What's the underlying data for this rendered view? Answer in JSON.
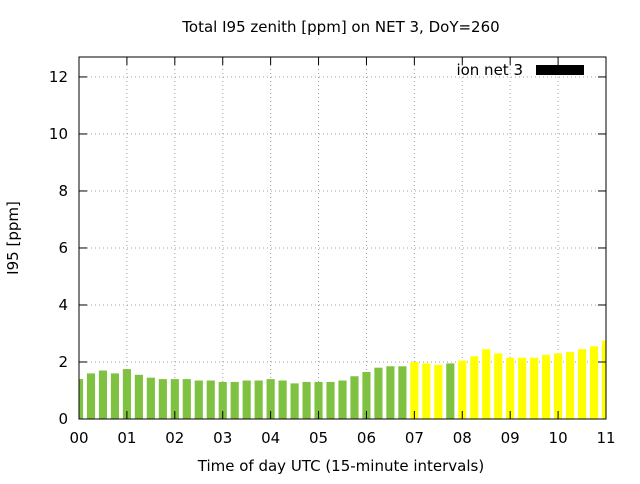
{
  "chart_data": {
    "type": "bar",
    "title": "Total I95 zenith [ppm] on NET 3, DoY=260",
    "xlabel": "Time of day UTC (15-minute intervals)",
    "ylabel": "I95 [ppm]",
    "xlim": [
      0,
      11
    ],
    "ylim": [
      0,
      12.7
    ],
    "xticks": [
      "00",
      "01",
      "02",
      "03",
      "04",
      "05",
      "06",
      "07",
      "08",
      "09",
      "10",
      "11"
    ],
    "yticks": [
      "0",
      "2",
      "4",
      "6",
      "8",
      "10",
      "12"
    ],
    "grid": true,
    "legend": {
      "position": "top-right",
      "label": "ion net 3",
      "color": "#000000"
    },
    "colors": {
      "green": "#7fc241",
      "yellow": "#ffff00"
    },
    "bar_width_hours": 0.17,
    "series": [
      {
        "x": [
          0.0,
          0.25,
          0.5,
          0.75,
          1.0,
          1.25,
          1.5,
          1.75,
          2.0,
          2.25,
          2.5,
          2.75,
          3.0,
          3.25,
          3.5,
          3.75,
          4.0,
          4.25,
          4.5,
          4.75,
          5.0,
          5.25,
          5.5,
          5.75,
          6.0,
          6.25,
          6.5,
          6.75,
          7.0,
          7.25,
          7.5,
          7.75,
          8.0,
          8.25,
          8.5,
          8.75,
          9.0,
          9.25,
          9.5,
          9.75,
          10.0,
          10.25,
          10.5,
          10.75,
          11.0
        ],
        "values": [
          1.4,
          1.6,
          1.7,
          1.6,
          1.75,
          1.55,
          1.45,
          1.4,
          1.4,
          1.4,
          1.35,
          1.35,
          1.3,
          1.3,
          1.35,
          1.35,
          1.4,
          1.35,
          1.25,
          1.3,
          1.3,
          1.3,
          1.35,
          1.5,
          1.65,
          1.8,
          1.85,
          1.85,
          2.0,
          1.95,
          1.9,
          1.95,
          2.05,
          2.2,
          2.45,
          2.3,
          2.15,
          2.15,
          2.15,
          2.25,
          2.3,
          2.35,
          2.45,
          2.55,
          2.75
        ],
        "colors": [
          "green",
          "green",
          "green",
          "green",
          "green",
          "green",
          "green",
          "green",
          "green",
          "green",
          "green",
          "green",
          "green",
          "green",
          "green",
          "green",
          "green",
          "green",
          "green",
          "green",
          "green",
          "green",
          "green",
          "green",
          "green",
          "green",
          "green",
          "green",
          "yellow",
          "yellow",
          "yellow",
          "green",
          "yellow",
          "yellow",
          "yellow",
          "yellow",
          "yellow",
          "yellow",
          "yellow",
          "yellow",
          "yellow",
          "yellow",
          "yellow",
          "yellow",
          "yellow"
        ]
      }
    ]
  }
}
